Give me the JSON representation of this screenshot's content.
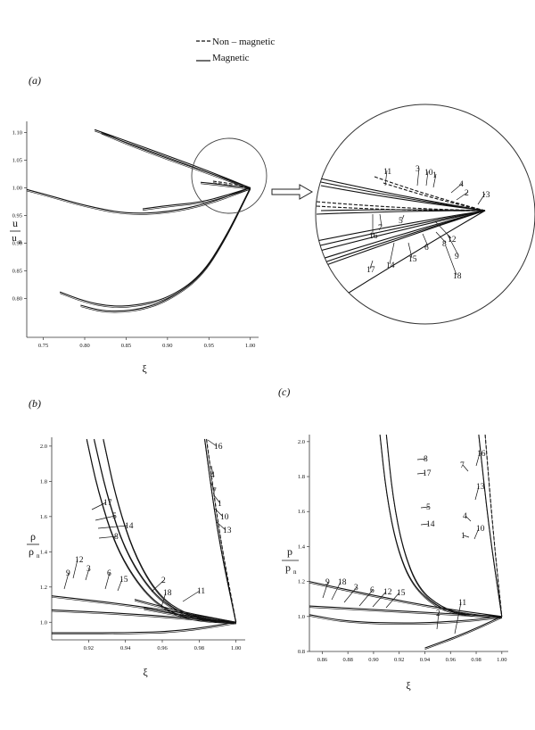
{
  "legend": {
    "items": [
      {
        "label": "Non – magnetic",
        "style": "dashed"
      },
      {
        "label": "Magnetic",
        "style": "solid"
      }
    ]
  },
  "panel_labels": {
    "a": "(a)",
    "b": "(b)",
    "c": "(c)"
  },
  "colors": {
    "line": "#111111",
    "axis": "#333333",
    "background": "#ffffff"
  },
  "chart_data": [
    {
      "id": "a",
      "type": "line",
      "title": "",
      "xlabel": "ξ",
      "ylabel": {
        "num": "u",
        "den": "u",
        "sub": "n"
      },
      "xlim": [
        0.73,
        1.01
      ],
      "ylim": [
        0.73,
        1.12
      ],
      "xticks": [
        "0.75",
        "0.80",
        "0.85",
        "0.90",
        "0.95",
        "1.00"
      ],
      "yticks": [
        "0.80",
        "0.85",
        "0.90",
        "0.95",
        "1.00",
        "1.05",
        "1.10"
      ],
      "grid": false,
      "series": [
        {
          "style": "solid",
          "x": [
            0.73,
            0.76,
            0.8,
            0.85,
            0.9,
            0.95,
            1.0
          ],
          "y": [
            0.997,
            0.985,
            0.968,
            0.953,
            0.956,
            0.972,
            1.0
          ]
        },
        {
          "style": "solid",
          "x": [
            0.812,
            0.85,
            0.9,
            0.95,
            1.0
          ],
          "y": [
            1.105,
            1.085,
            1.058,
            1.03,
            1.0
          ]
        },
        {
          "style": "solid",
          "x": [
            0.82,
            0.85,
            0.9,
            0.95,
            1.0
          ],
          "y": [
            1.1,
            1.081,
            1.053,
            1.027,
            1.0
          ]
        },
        {
          "style": "solid",
          "x": [
            0.77,
            0.8,
            0.83,
            0.86,
            0.9,
            0.94,
            0.97,
            1.0
          ],
          "y": [
            0.812,
            0.795,
            0.786,
            0.787,
            0.8,
            0.84,
            0.91,
            1.0
          ]
        },
        {
          "style": "solid",
          "x": [
            0.795,
            0.82,
            0.845,
            0.87,
            0.9,
            0.94,
            0.97,
            1.0
          ],
          "y": [
            0.788,
            0.778,
            0.777,
            0.782,
            0.797,
            0.838,
            0.908,
            1.0
          ]
        },
        {
          "style": "solid",
          "x": [
            0.87,
            0.9,
            0.94,
            0.97,
            1.0
          ],
          "y": [
            0.962,
            0.968,
            0.974,
            0.986,
            1.0
          ]
        },
        {
          "style": "solid",
          "x": [
            0.94,
            0.96,
            0.98,
            1.0
          ],
          "y": [
            1.01,
            1.007,
            1.003,
            1.0
          ]
        },
        {
          "style": "dashed",
          "x": [
            0.955,
            0.97,
            0.985,
            1.0
          ],
          "y": [
            1.012,
            1.009,
            1.005,
            1.0
          ]
        }
      ]
    },
    {
      "id": "a-inset",
      "type": "line",
      "title": "",
      "curve_labels": [
        "11",
        "3",
        "10",
        "1",
        "4",
        "2",
        "13",
        "16",
        "7",
        "5",
        "12",
        "14",
        "6",
        "8",
        "15",
        "9",
        "17",
        "18"
      ]
    },
    {
      "id": "b",
      "type": "line",
      "title": "",
      "xlabel": "ξ",
      "ylabel": {
        "num": "ρ",
        "den": "ρ",
        "sub": "n"
      },
      "xlim": [
        0.9,
        1.005
      ],
      "ylim": [
        0.9,
        2.05
      ],
      "xticks": [
        "0.92",
        "0.94",
        "0.96",
        "0.98",
        "1.00"
      ],
      "yticks": [
        "1.0",
        "1.2",
        "1.4",
        "1.6",
        "1.8",
        "2.0"
      ],
      "grid": false,
      "curve_labels": [
        "16",
        "17",
        "5",
        "14",
        "8",
        "4",
        "7",
        "1",
        "10",
        "13",
        "12",
        "3",
        "9",
        "6",
        "15",
        "2",
        "18",
        "11"
      ],
      "series": [
        {
          "style": "solid",
          "x": [
            0.919,
            0.925,
            0.935,
            0.95,
            0.965,
            0.98,
            1.0
          ],
          "y": [
            2.04,
            1.75,
            1.42,
            1.17,
            1.05,
            1.01,
            1.0
          ]
        },
        {
          "style": "solid",
          "x": [
            0.923,
            0.93,
            0.94,
            0.955,
            0.97,
            0.985,
            1.0
          ],
          "y": [
            2.04,
            1.72,
            1.4,
            1.16,
            1.05,
            1.01,
            1.0
          ]
        },
        {
          "style": "solid",
          "x": [
            0.928,
            0.935,
            0.945,
            0.958,
            0.972,
            0.987,
            1.0
          ],
          "y": [
            2.04,
            1.7,
            1.38,
            1.15,
            1.05,
            1.01,
            1.0
          ]
        },
        {
          "style": "solid",
          "x": [
            0.9,
            0.95,
            1.0
          ],
          "y": [
            1.15,
            1.09,
            1.0
          ]
        },
        {
          "style": "solid",
          "x": [
            0.9,
            0.95,
            1.0
          ],
          "y": [
            1.07,
            1.045,
            1.0
          ]
        },
        {
          "style": "solid",
          "x": [
            0.9,
            0.94,
            0.97,
            1.0
          ],
          "y": [
            0.94,
            0.94,
            0.95,
            1.0
          ]
        },
        {
          "style": "solid",
          "x": [
            0.945,
            0.97,
            1.0
          ],
          "y": [
            1.13,
            1.06,
            1.0
          ]
        },
        {
          "style": "solid",
          "x": [
            0.95,
            0.975,
            1.0
          ],
          "y": [
            1.08,
            1.03,
            1.0
          ]
        },
        {
          "style": "solid",
          "x": [
            0.983,
            0.99,
            1.0
          ],
          "y": [
            2.04,
            1.5,
            1.0
          ]
        },
        {
          "style": "dashed",
          "x": [
            0.984,
            0.991,
            1.0
          ],
          "y": [
            2.04,
            1.5,
            1.0
          ]
        }
      ]
    },
    {
      "id": "c",
      "type": "line",
      "title": "",
      "xlabel": "ξ",
      "ylabel": {
        "num": "p",
        "den": "p",
        "sub": "n"
      },
      "xlim": [
        0.85,
        1.005
      ],
      "ylim": [
        0.8,
        2.04
      ],
      "xticks": [
        "0.86",
        "0.88",
        "0.90",
        "0.92",
        "0.94",
        "0.96",
        "0.98",
        "1.00"
      ],
      "yticks": [
        "0.8",
        "1.0",
        "1.2",
        "1.4",
        "1.6",
        "1.8",
        "2.0"
      ],
      "grid": false,
      "curve_labels": [
        "8",
        "17",
        "5",
        "14",
        "7",
        "16",
        "13",
        "4",
        "10",
        "1",
        "9",
        "18",
        "3",
        "6",
        "12",
        "15",
        "2",
        "11"
      ],
      "series": [
        {
          "style": "solid",
          "x": [
            0.905,
            0.91,
            0.918,
            0.93,
            0.95,
            0.97,
            1.0
          ],
          "y": [
            2.04,
            1.7,
            1.4,
            1.18,
            1.05,
            1.01,
            1.0
          ]
        },
        {
          "style": "solid",
          "x": [
            0.91,
            0.915,
            0.923,
            0.935,
            0.953,
            0.972,
            1.0
          ],
          "y": [
            2.04,
            1.68,
            1.38,
            1.16,
            1.05,
            1.01,
            1.0
          ]
        },
        {
          "style": "solid",
          "x": [
            0.85,
            0.9,
            0.95,
            1.0
          ],
          "y": [
            1.2,
            1.12,
            1.05,
            1.0
          ]
        },
        {
          "style": "solid",
          "x": [
            0.85,
            0.9,
            0.95,
            1.0
          ],
          "y": [
            1.06,
            1.04,
            1.02,
            1.0
          ]
        },
        {
          "style": "solid",
          "x": [
            0.85,
            0.88,
            0.93,
            0.97,
            1.0
          ],
          "y": [
            1.01,
            0.97,
            0.96,
            0.975,
            1.0
          ]
        },
        {
          "style": "solid",
          "x": [
            0.94,
            0.97,
            1.0
          ],
          "y": [
            0.82,
            0.9,
            1.0
          ]
        },
        {
          "style": "solid",
          "x": [
            0.982,
            0.99,
            1.0
          ],
          "y": [
            2.04,
            1.5,
            1.0
          ]
        },
        {
          "style": "dashed",
          "x": [
            0.987,
            0.993,
            1.0
          ],
          "y": [
            2.04,
            1.5,
            1.0
          ]
        }
      ]
    }
  ]
}
